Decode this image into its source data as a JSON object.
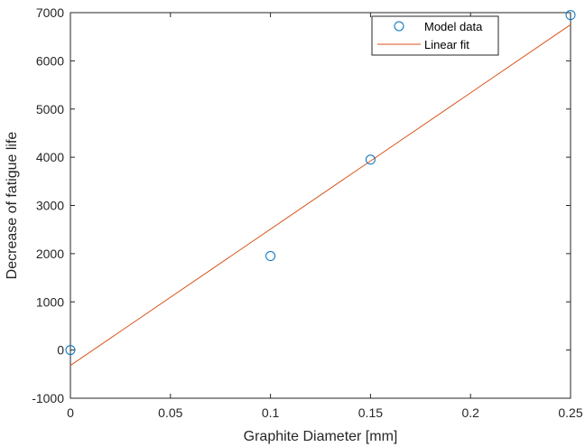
{
  "chart_data": {
    "type": "scatter",
    "title": "",
    "xlabel": "Graphite Diameter [mm]",
    "ylabel": "Decrease of fatigue life",
    "xlim": [
      0,
      0.25
    ],
    "ylim": [
      -1000,
      7000
    ],
    "xticks": [
      0,
      0.05,
      0.1,
      0.15,
      0.2,
      0.25
    ],
    "xtick_labels": [
      "0",
      "0.05",
      "0.1",
      "0.15",
      "0.2",
      "0.25"
    ],
    "yticks": [
      -1000,
      0,
      1000,
      2000,
      3000,
      4000,
      5000,
      6000,
      7000
    ],
    "ytick_labels": [
      "-1000",
      "0",
      "1000",
      "2000",
      "3000",
      "4000",
      "5000",
      "6000",
      "7000"
    ],
    "grid": false,
    "legend_position": "top-right",
    "series": [
      {
        "name": "Model data",
        "kind": "scatter",
        "marker": "circle-open",
        "color": "#0072BD",
        "x": [
          0,
          0.1,
          0.15,
          0.25
        ],
        "y": [
          0,
          1950,
          3950,
          6950
        ]
      },
      {
        "name": "Linear fit",
        "kind": "line",
        "color": "#D95319",
        "x": [
          0,
          0.25
        ],
        "y": [
          -320,
          6750
        ]
      }
    ]
  }
}
